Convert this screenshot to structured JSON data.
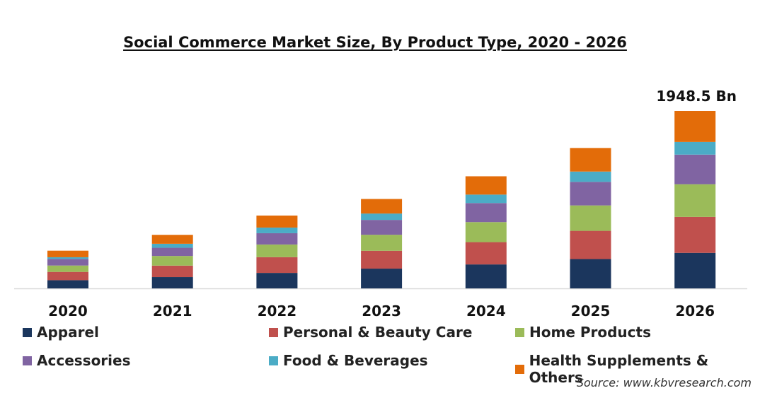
{
  "chart_data": {
    "type": "bar",
    "stacked": true,
    "title": "Social Commerce Market Size, By Product Type, 2020 - 2026",
    "categories": [
      "2020",
      "2021",
      "2022",
      "2023",
      "2024",
      "2025",
      "2026"
    ],
    "series": [
      {
        "name": "Apparel",
        "color": "#1b365d",
        "values": [
          90,
          124,
          170,
          217,
          263,
          322,
          390
        ]
      },
      {
        "name": "Personal & Beauty Care",
        "color": "#c0504d",
        "values": [
          91,
          126,
          173,
          196,
          245,
          310,
          395
        ]
      },
      {
        "name": "Home Products",
        "color": "#9bbb59",
        "values": [
          70,
          106,
          139,
          176,
          220,
          279,
          359
        ]
      },
      {
        "name": "Accessories",
        "color": "#8064a2",
        "values": [
          72,
          90,
          124,
          163,
          209,
          259,
          325
        ]
      },
      {
        "name": "Food & Beverages",
        "color": "#4bacc6",
        "values": [
          19,
          44,
          62,
          70,
          93,
          113,
          139
        ]
      },
      {
        "name": "Health Supplements & Others",
        "color": "#e36c09",
        "values": [
          72,
          98,
          132,
          160,
          201,
          259,
          340.5
        ]
      }
    ],
    "annotation": {
      "category": "2026",
      "text": "1948.5 Bn"
    },
    "ylim": [
      0,
      1948.5
    ],
    "grid": false,
    "legend_position": "bottom",
    "unit": "Bn"
  },
  "source": "Source: www.kbvresearch.com"
}
